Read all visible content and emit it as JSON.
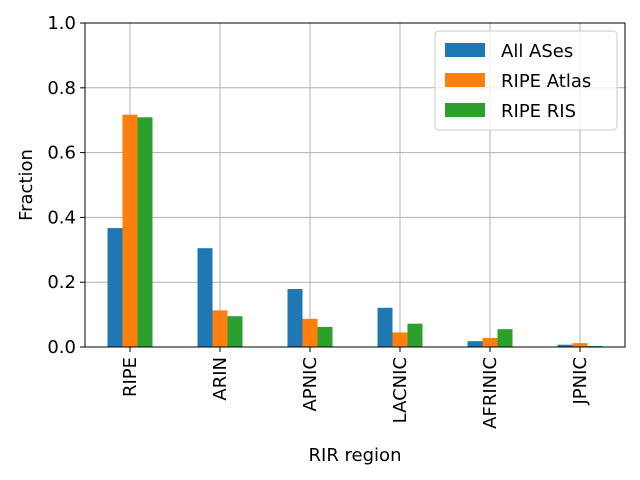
{
  "chart_data": {
    "type": "bar",
    "categories": [
      "RIPE",
      "ARIN",
      "APNIC",
      "LACNIC",
      "AFRINIC",
      "JPNIC"
    ],
    "series": [
      {
        "name": "All ASes",
        "values": [
          0.367,
          0.305,
          0.179,
          0.121,
          0.018,
          0.007
        ],
        "color": "#1f77b4"
      },
      {
        "name": "RIPE Atlas",
        "values": [
          0.717,
          0.113,
          0.087,
          0.045,
          0.028,
          0.012
        ],
        "color": "#ff7f0e"
      },
      {
        "name": "RIPE RIS",
        "values": [
          0.709,
          0.095,
          0.062,
          0.072,
          0.055,
          0.003
        ],
        "color": "#2ca02c"
      }
    ],
    "xlabel": "RIR region",
    "ylabel": "Fraction",
    "ylim": [
      0,
      1.0
    ],
    "yticks": [
      "0.0",
      "0.2",
      "0.4",
      "0.6",
      "0.8",
      "1.0"
    ],
    "grid": true,
    "legend_position": "top-right"
  }
}
